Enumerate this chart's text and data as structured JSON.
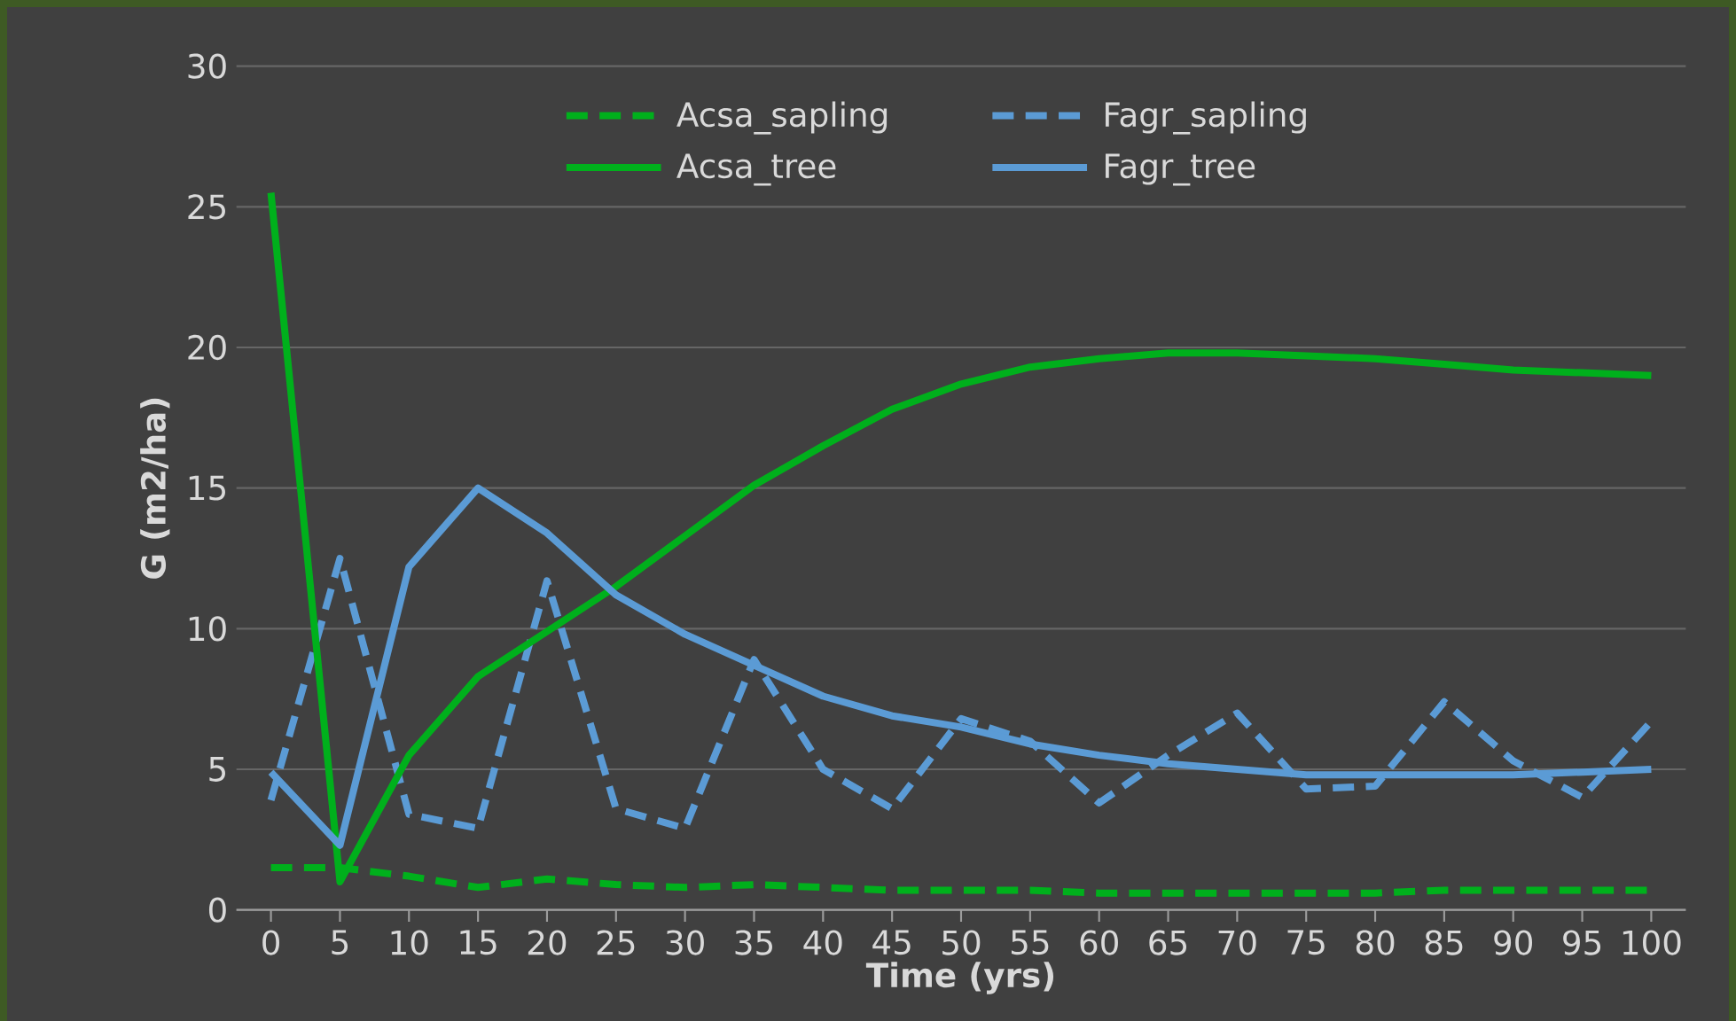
{
  "chart_data": {
    "type": "line",
    "xlabel": "Time (yrs)",
    "ylabel": "G (m2/ha)",
    "categories": [
      "0",
      "5",
      "10",
      "15",
      "20",
      "25",
      "30",
      "35",
      "40",
      "45",
      "50",
      "55",
      "60",
      "65",
      "70",
      "75",
      "80",
      "85",
      "90",
      "95",
      "100"
    ],
    "series": [
      {
        "name": "Acsa_sapling",
        "color": "#00b01c",
        "line_style": "dashed",
        "values": [
          1.5,
          1.5,
          1.2,
          0.8,
          1.1,
          0.9,
          0.8,
          0.9,
          0.8,
          0.7,
          0.7,
          0.7,
          0.6,
          0.6,
          0.6,
          0.6,
          0.6,
          0.7,
          0.7,
          0.7,
          0.7
        ]
      },
      {
        "name": "Fagr_sapling",
        "color": "#5b9bd5",
        "line_style": "dashed",
        "values": [
          3.9,
          12.5,
          3.4,
          2.9,
          11.7,
          3.6,
          2.9,
          8.9,
          5.0,
          3.6,
          6.8,
          6.0,
          3.8,
          5.5,
          7.0,
          4.3,
          4.4,
          7.4,
          5.3,
          4.0,
          6.7
        ]
      },
      {
        "name": "Acsa_tree",
        "color": "#00b01c",
        "line_style": "solid",
        "values": [
          25.5,
          1.0,
          5.5,
          8.3,
          9.9,
          11.5,
          13.3,
          15.1,
          16.5,
          17.8,
          18.7,
          19.3,
          19.6,
          19.8,
          19.8,
          19.7,
          19.6,
          19.4,
          19.2,
          19.1,
          19.0
        ]
      },
      {
        "name": "Fagr_tree",
        "color": "#5b9bd5",
        "line_style": "solid",
        "values": [
          4.9,
          2.3,
          12.2,
          15.0,
          13.4,
          11.2,
          9.8,
          8.7,
          7.6,
          6.9,
          6.5,
          5.9,
          5.5,
          5.2,
          5.0,
          4.8,
          4.8,
          4.8,
          4.8,
          4.9,
          5.0
        ]
      }
    ],
    "ylim": [
      0,
      30
    ],
    "yticks": [
      0,
      5,
      10,
      15,
      20,
      25,
      30
    ],
    "grid": "y",
    "legend": "top",
    "marker": "none"
  }
}
